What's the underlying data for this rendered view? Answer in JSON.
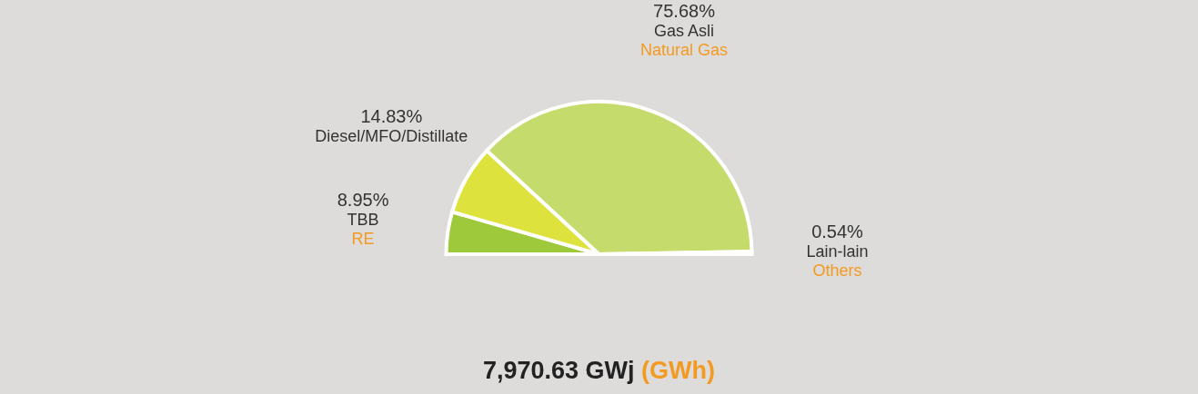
{
  "chart_data": {
    "type": "pie",
    "title": "7,970.63 GWj",
    "subtitle": "(GWh)",
    "categories": [
      "TBB",
      "Diesel/MFO/Distillate",
      "Gas Asli",
      "Lain-lain"
    ],
    "values": [
      8.95,
      14.83,
      75.68,
      0.54
    ],
    "colors": [
      "#9ec93a",
      "#dde23c",
      "#c5dc6c",
      "#2e7d3b"
    ],
    "value_labels": [
      "8.95%",
      "14.83%",
      "75.68%",
      "0.54%"
    ],
    "annotations": [
      {
        "text": "RE",
        "x": "TBB"
      },
      {
        "text": "Natural Gas",
        "x": "Gas Asli"
      },
      {
        "text": "Others",
        "x": "Lain-lain"
      }
    ],
    "legend": false
  }
}
